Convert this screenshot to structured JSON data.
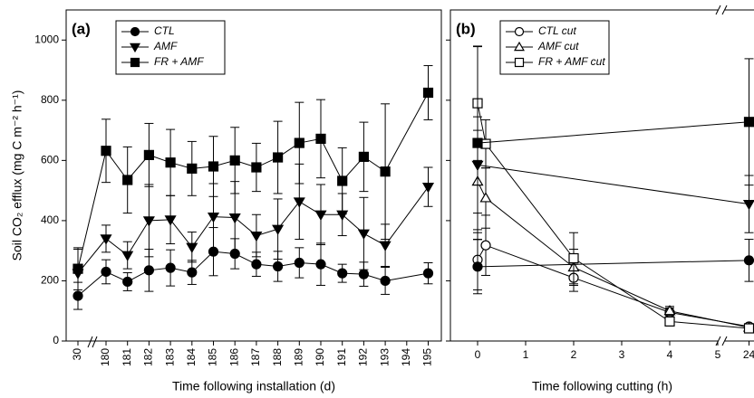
{
  "chart_data": [
    {
      "type": "line",
      "panel_label": "(a)",
      "xlabel": "Time following installation (d)",
      "ylabel": "Soil CO₂ efflux (mg C m⁻² h⁻¹)",
      "categories": [
        "30",
        "180",
        "181",
        "182",
        "183",
        "184",
        "185",
        "186",
        "187",
        "188",
        "189",
        "190",
        "191",
        "192",
        "193",
        "194",
        "195"
      ],
      "ylim": [
        0,
        1100
      ],
      "yticks": [
        0,
        200,
        400,
        600,
        800,
        1000
      ],
      "series": [
        {
          "name": "CTL",
          "color": "#000000",
          "marker": "circle",
          "filled": true,
          "values": [
            150,
            230,
            197,
            235,
            243,
            228,
            297,
            290,
            255,
            248,
            260,
            255,
            225,
            222,
            200,
            null,
            225
          ],
          "errors": [
            45,
            40,
            30,
            70,
            60,
            40,
            80,
            50,
            40,
            50,
            50,
            70,
            30,
            40,
            45,
            null,
            35
          ]
        },
        {
          "name": "AMF",
          "color": "#000000",
          "marker": "triangle-down",
          "filled": true,
          "values": [
            225,
            340,
            285,
            400,
            403,
            312,
            413,
            410,
            350,
            372,
            463,
            420,
            420,
            357,
            318,
            null,
            512
          ],
          "errors": [
            80,
            45,
            45,
            120,
            80,
            50,
            110,
            120,
            70,
            100,
            125,
            100,
            70,
            120,
            70,
            null,
            65
          ]
        },
        {
          "name": "FR + AMF",
          "color": "#000000",
          "marker": "square",
          "filled": true,
          "values": [
            240,
            632,
            535,
            618,
            593,
            573,
            580,
            600,
            577,
            610,
            658,
            672,
            532,
            612,
            563,
            null,
            825
          ],
          "errors": [
            70,
            105,
            110,
            105,
            110,
            90,
            100,
            110,
            80,
            120,
            135,
            130,
            110,
            115,
            225,
            null,
            90
          ]
        }
      ]
    },
    {
      "type": "scatter-line",
      "panel_label": "(b)",
      "xlabel": "Time following cutting (h)",
      "xticks": [
        0,
        1,
        2,
        3,
        4,
        5,
        24
      ],
      "ylim": [
        0,
        1100
      ],
      "yticks": [
        0,
        200,
        400,
        600,
        800,
        1000
      ],
      "series": [
        {
          "name": "CTL cut",
          "color": "#000000",
          "marker": "circle",
          "filled": false,
          "x": [
            0,
            0.17,
            2,
            4,
            24
          ],
          "values": [
            270,
            318,
            210,
            95,
            48
          ],
          "errors": [
            100,
            100,
            45,
            15,
            10
          ]
        },
        {
          "name": "AMF cut",
          "color": "#000000",
          "marker": "triangle-up",
          "filled": false,
          "x": [
            0,
            0.17,
            2,
            4,
            24
          ],
          "values": [
            530,
            475,
            245,
            100,
            45
          ],
          "errors": [
            170,
            100,
            60,
            15,
            10
          ]
        },
        {
          "name": "FR + AMF cut",
          "color": "#000000",
          "marker": "square",
          "filled": false,
          "x": [
            0,
            0.17,
            2,
            4,
            24
          ],
          "values": [
            790,
            655,
            275,
            65,
            42
          ],
          "errors": [
            190,
            80,
            85,
            15,
            10
          ]
        },
        {
          "color": "#000000",
          "marker": "circle",
          "filled": true,
          "x": [
            0,
            24
          ],
          "values": [
            247,
            268
          ],
          "errors": [
            90,
            70
          ]
        },
        {
          "color": "#000000",
          "marker": "triangle-down",
          "filled": true,
          "x": [
            0,
            24
          ],
          "values": [
            585,
            455
          ],
          "errors": [
            160,
            95
          ]
        },
        {
          "color": "#000000",
          "marker": "square",
          "filled": true,
          "x": [
            0,
            24
          ],
          "values": [
            658,
            728
          ],
          "errors": [
            320,
            210
          ]
        }
      ]
    }
  ]
}
